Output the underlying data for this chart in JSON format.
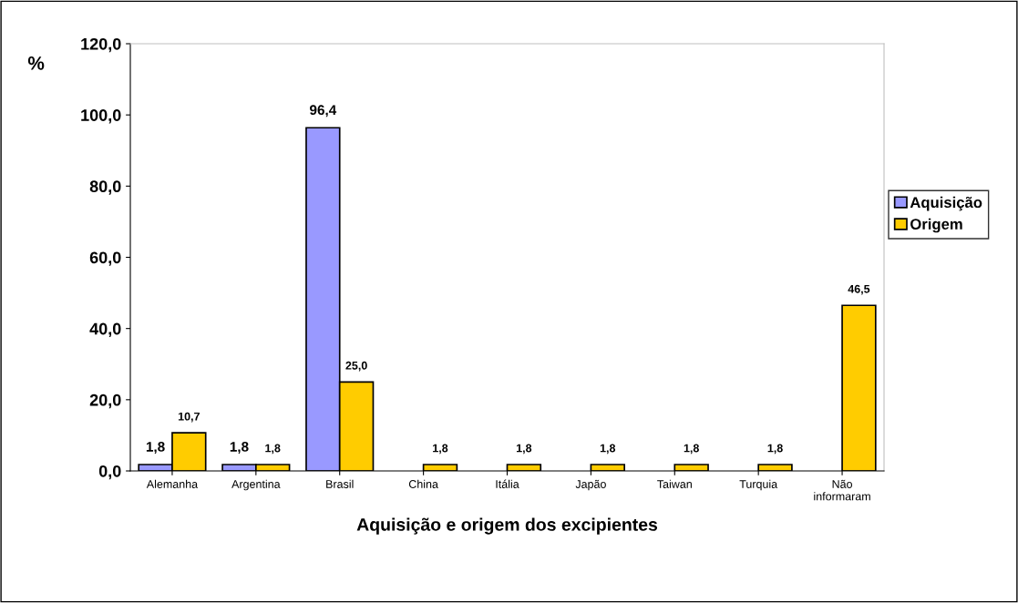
{
  "chart_data": {
    "type": "bar",
    "xlabel": "Aquisição e origem dos excipientes",
    "ylabel": "%",
    "categories": [
      "Alemanha",
      "Argentina",
      "Brasil",
      "China",
      "Itália",
      "Japão",
      "Taiwan",
      "Turquia",
      "Não\ninformaram"
    ],
    "series": [
      {
        "name": "Aquisição",
        "color": "#9999ff",
        "values": [
          1.8,
          1.8,
          96.4,
          null,
          null,
          null,
          null,
          null,
          null
        ],
        "value_labels": [
          "1,8",
          "1,8",
          "96,4",
          null,
          null,
          null,
          null,
          null,
          null
        ]
      },
      {
        "name": "Origem",
        "color": "#ffcc00",
        "values": [
          10.7,
          1.8,
          25.0,
          1.8,
          1.8,
          1.8,
          1.8,
          1.8,
          46.5
        ],
        "value_labels": [
          "10,7",
          "1,8",
          "25,0",
          "1,8",
          "1,8",
          "1,8",
          "1,8",
          "1,8",
          "46,5"
        ]
      }
    ],
    "ylim": [
      0,
      120
    ],
    "yticks": [
      {
        "value": 0,
        "label": "0,0"
      },
      {
        "value": 20,
        "label": "20,0"
      },
      {
        "value": 40,
        "label": "40,0"
      },
      {
        "value": 60,
        "label": "60,0"
      },
      {
        "value": 80,
        "label": "80,0"
      },
      {
        "value": 100,
        "label": "100,0"
      },
      {
        "value": 120,
        "label": "120,0"
      }
    ],
    "grid": false,
    "legend": "right"
  }
}
